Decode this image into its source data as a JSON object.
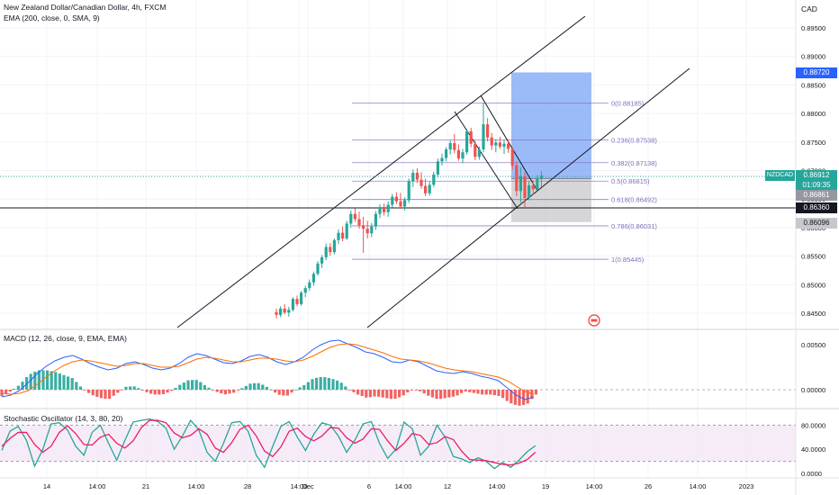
{
  "legend": {
    "main": "New Zealand Dollar/Canadian Dollar, 4h, FXCM",
    "ema": "EMA (200, close, 0, SMA, 9)",
    "macd": "MACD (12, 26, close, 9, EMA, EMA)",
    "stoch": "Stochastic Oscillator (14, 3, 80, 20)"
  },
  "currency": "CAD",
  "price_axis": [
    "0.89500",
    "0.89000",
    "0.88500",
    "0.88000",
    "0.87500",
    "0.87000",
    "0.86500",
    "0.86000",
    "0.85500",
    "0.85000",
    "0.84500"
  ],
  "macd_axis": [
    "0.00500",
    "0.00000"
  ],
  "stoch_axis": [
    "80.0000",
    "40.0000",
    "0.0000"
  ],
  "time_axis": [
    "14",
    "14:00",
    "21",
    "14:00",
    "28",
    "14:00",
    "Dec",
    "6",
    "14:00",
    "12",
    "14:00",
    "19",
    "14:00",
    "26",
    "14:00",
    "2023"
  ],
  "symbol_tag": "NZDCAD",
  "tags": {
    "target": "0.88720",
    "last": "0.86912",
    "countdown": "01:09:35",
    "entry": "0.86861",
    "hline": "0.86360",
    "stop": "0.86096"
  },
  "fib": [
    {
      "label": "0(0.88185)",
      "price": 0.88185
    },
    {
      "label": "0.236(0.87538)",
      "price": 0.87538
    },
    {
      "label": "0.382(0.87138)",
      "price": 0.87138
    },
    {
      "label": "0.5(0.86815)",
      "price": 0.86815
    },
    {
      "label": "0.618(0.86492)",
      "price": 0.86492
    },
    {
      "label": "0.786(0.86031)",
      "price": 0.86031
    },
    {
      "label": "1(0.85445)",
      "price": 0.85445
    }
  ],
  "colors": {
    "up": "#26a69a",
    "down": "#ef5350",
    "macd": "#2962ff",
    "signal": "#ff6d00",
    "k": "#26a69a",
    "d": "#e91e63",
    "fib": "#7e6fbd",
    "grid": "#f0f3fa",
    "target_zone": "#7aa4f5",
    "stop_zone": "#c8c8cc",
    "accent": "#2962ff"
  },
  "chart_data": [
    {
      "type": "candlestick",
      "title": "New Zealand Dollar/Canadian Dollar, 4h, FXCM",
      "x_ticks": [
        "14",
        "14:00",
        "21",
        "14:00",
        "28",
        "14:00",
        "Dec",
        "6",
        "14:00",
        "12",
        "14:00",
        "19",
        "14:00",
        "26",
        "14:00",
        "2023"
      ],
      "ylim": [
        0.842,
        0.898
      ],
      "ohlc": [
        [
          0.8452,
          0.8458,
          0.8441,
          0.8447
        ],
        [
          0.8447,
          0.8462,
          0.8443,
          0.8458
        ],
        [
          0.8458,
          0.8466,
          0.8448,
          0.8451
        ],
        [
          0.8451,
          0.8461,
          0.8444,
          0.8456
        ],
        [
          0.8456,
          0.8478,
          0.8453,
          0.8475
        ],
        [
          0.8475,
          0.8481,
          0.8462,
          0.8466
        ],
        [
          0.8466,
          0.8489,
          0.8463,
          0.8486
        ],
        [
          0.8486,
          0.8498,
          0.8478,
          0.8494
        ],
        [
          0.8494,
          0.8509,
          0.8489,
          0.8504
        ],
        [
          0.8504,
          0.8523,
          0.8498,
          0.8519
        ],
        [
          0.8519,
          0.8541,
          0.8516,
          0.8537
        ],
        [
          0.8537,
          0.8552,
          0.8529,
          0.8548
        ],
        [
          0.8548,
          0.8572,
          0.8543,
          0.8566
        ],
        [
          0.8566,
          0.8573,
          0.8551,
          0.8557
        ],
        [
          0.8557,
          0.8581,
          0.8553,
          0.8578
        ],
        [
          0.8578,
          0.8597,
          0.8571,
          0.8591
        ],
        [
          0.8591,
          0.8602,
          0.8576,
          0.8581
        ],
        [
          0.8581,
          0.8612,
          0.8578,
          0.8607
        ],
        [
          0.8607,
          0.863,
          0.86,
          0.8624
        ],
        [
          0.8624,
          0.8634,
          0.861,
          0.8615
        ],
        [
          0.8615,
          0.8628,
          0.8598,
          0.8604
        ],
        [
          0.8604,
          0.8619,
          0.8556,
          0.8598
        ],
        [
          0.8598,
          0.8612,
          0.8581,
          0.859
        ],
        [
          0.859,
          0.8608,
          0.8583,
          0.8602
        ],
        [
          0.8602,
          0.8629,
          0.8596,
          0.8624
        ],
        [
          0.8624,
          0.8641,
          0.8617,
          0.8636
        ],
        [
          0.8636,
          0.8642,
          0.8621,
          0.8627
        ],
        [
          0.8627,
          0.8646,
          0.8619,
          0.864
        ],
        [
          0.864,
          0.8659,
          0.8635,
          0.8654
        ],
        [
          0.8654,
          0.8662,
          0.8641,
          0.8646
        ],
        [
          0.8646,
          0.8661,
          0.8633,
          0.8637
        ],
        [
          0.8637,
          0.8653,
          0.863,
          0.8648
        ],
        [
          0.8648,
          0.8686,
          0.8643,
          0.8681
        ],
        [
          0.8681,
          0.8702,
          0.8671,
          0.8696
        ],
        [
          0.8696,
          0.8704,
          0.8678,
          0.8684
        ],
        [
          0.8684,
          0.8697,
          0.8668,
          0.8673
        ],
        [
          0.8673,
          0.8686,
          0.8655,
          0.866
        ],
        [
          0.866,
          0.8681,
          0.8656,
          0.8675
        ],
        [
          0.8675,
          0.8698,
          0.8671,
          0.8693
        ],
        [
          0.8693,
          0.8721,
          0.8688,
          0.8716
        ],
        [
          0.8716,
          0.873,
          0.8709,
          0.8722
        ],
        [
          0.8722,
          0.8741,
          0.8716,
          0.8737
        ],
        [
          0.8737,
          0.8753,
          0.8728,
          0.8748
        ],
        [
          0.8748,
          0.8764,
          0.873,
          0.8736
        ],
        [
          0.8736,
          0.8746,
          0.8717,
          0.8721
        ],
        [
          0.8721,
          0.8738,
          0.8713,
          0.8732
        ],
        [
          0.8732,
          0.8773,
          0.8728,
          0.8769
        ],
        [
          0.8769,
          0.8775,
          0.8741,
          0.8747
        ],
        [
          0.8747,
          0.8752,
          0.8718,
          0.8724
        ],
        [
          0.8724,
          0.8742,
          0.8719,
          0.8737
        ],
        [
          0.8737,
          0.8819,
          0.8732,
          0.8781
        ],
        [
          0.8781,
          0.8792,
          0.8751,
          0.8758
        ],
        [
          0.8758,
          0.8766,
          0.8736,
          0.8744
        ],
        [
          0.8744,
          0.8755,
          0.8732,
          0.8749
        ],
        [
          0.8749,
          0.8759,
          0.8738,
          0.8742
        ],
        [
          0.8742,
          0.8753,
          0.8729,
          0.8747
        ],
        [
          0.8747,
          0.8754,
          0.8731,
          0.8738
        ],
        [
          0.8738,
          0.8741,
          0.8702,
          0.8709
        ],
        [
          0.8709,
          0.8716,
          0.8655,
          0.8664
        ],
        [
          0.8664,
          0.8706,
          0.8644,
          0.869
        ],
        [
          0.869,
          0.8697,
          0.8636,
          0.8652
        ],
        [
          0.8652,
          0.8681,
          0.8648,
          0.8674
        ],
        [
          0.8674,
          0.8683,
          0.8657,
          0.8667
        ],
        [
          0.8667,
          0.8692,
          0.8664,
          0.8686
        ],
        [
          0.8686,
          0.8699,
          0.8672,
          0.8691
        ]
      ],
      "horizontal_line": 0.8636,
      "position": {
        "entry": 0.86861,
        "target": 0.8872,
        "stop": 0.86096
      }
    },
    {
      "type": "line",
      "title": "MACD (12, 26, close, 9, EMA, EMA)",
      "ylim": [
        -0.0022,
        0.0062
      ],
      "series": [
        {
          "name": "MACD",
          "values": [
            -0.0008,
            -0.0006,
            -0.0001,
            0.0008,
            0.0018,
            0.0026,
            0.0032,
            0.0036,
            0.0038,
            0.0034,
            0.0029,
            0.0025,
            0.0022,
            0.0024,
            0.0029,
            0.0031,
            0.0028,
            0.0024,
            0.0022,
            0.0024,
            0.0029,
            0.0036,
            0.004,
            0.0038,
            0.0034,
            0.003,
            0.0029,
            0.0032,
            0.0037,
            0.0039,
            0.0036,
            0.0031,
            0.0028,
            0.0031,
            0.0036,
            0.0044,
            0.005,
            0.0054,
            0.0055,
            0.0051,
            0.0047,
            0.0042,
            0.004,
            0.0036,
            0.0031,
            0.003,
            0.0033,
            0.0031,
            0.0026,
            0.0021,
            0.0019,
            0.0018,
            0.002,
            0.0018,
            0.0015,
            0.0013,
            0.001,
            0.0002,
            -0.0006,
            -0.0011,
            -0.0008
          ]
        },
        {
          "name": "Signal",
          "values": [
            -0.0004,
            -0.0005,
            -0.0004,
            -0.0001,
            0.0006,
            0.0014,
            0.0021,
            0.0027,
            0.0031,
            0.0033,
            0.0032,
            0.003,
            0.0028,
            0.0026,
            0.0027,
            0.0029,
            0.0029,
            0.0027,
            0.0025,
            0.0025,
            0.0026,
            0.003,
            0.0034,
            0.0036,
            0.0035,
            0.0033,
            0.0031,
            0.0031,
            0.0033,
            0.0035,
            0.0035,
            0.0034,
            0.0032,
            0.0031,
            0.0033,
            0.0037,
            0.0042,
            0.0047,
            0.005,
            0.0051,
            0.005,
            0.0047,
            0.0044,
            0.0041,
            0.0037,
            0.0034,
            0.0033,
            0.0032,
            0.003,
            0.0027,
            0.0024,
            0.0022,
            0.0021,
            0.002,
            0.0018,
            0.0016,
            0.0014,
            0.001,
            0.0004,
            -0.0002,
            -0.0005
          ]
        }
      ]
    },
    {
      "type": "line",
      "title": "Stochastic Oscillator (14, 3, 80, 20)",
      "ylim": [
        -6,
        92
      ],
      "bands": [
        20,
        80
      ],
      "series": [
        {
          "name": "%K",
          "values": [
            38,
            70,
            78,
            55,
            12,
            40,
            82,
            84,
            72,
            45,
            30,
            68,
            80,
            50,
            22,
            55,
            85,
            88,
            90,
            86,
            75,
            40,
            62,
            88,
            72,
            35,
            20,
            50,
            84,
            86,
            70,
            30,
            10,
            45,
            78,
            86,
            60,
            38,
            65,
            84,
            80,
            62,
            35,
            55,
            82,
            86,
            50,
            25,
            40,
            85,
            74,
            30,
            45,
            80,
            60,
            28,
            24,
            18,
            26,
            20,
            8,
            18,
            10,
            22,
            36,
            46
          ]
        },
        {
          "name": "%D",
          "values": [
            45,
            58,
            68,
            68,
            48,
            35,
            45,
            68,
            79,
            66,
            48,
            47,
            60,
            65,
            50,
            42,
            54,
            76,
            88,
            88,
            84,
            67,
            59,
            63,
            74,
            65,
            42,
            35,
            51,
            73,
            80,
            62,
            37,
            28,
            44,
            70,
            75,
            61,
            54,
            62,
            76,
            75,
            59,
            50,
            57,
            74,
            73,
            54,
            38,
            50,
            66,
            63,
            48,
            51,
            61,
            56,
            37,
            23,
            22,
            21,
            18,
            15,
            14,
            17,
            23,
            35
          ]
        }
      ]
    }
  ]
}
